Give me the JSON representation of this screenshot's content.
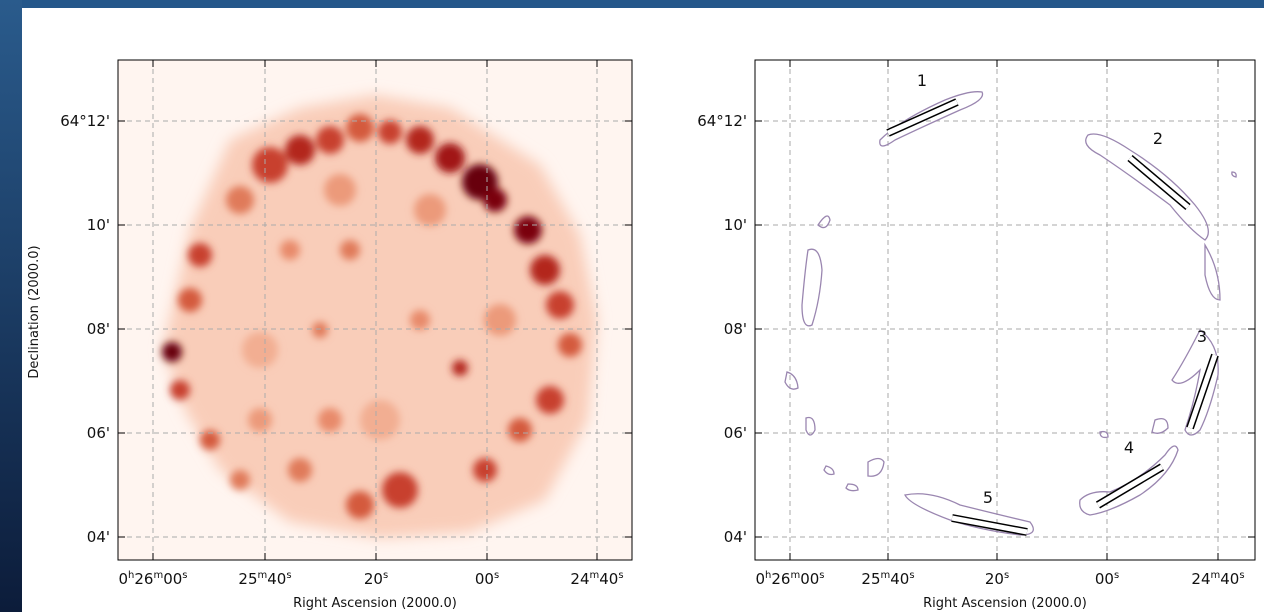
{
  "panels": [
    {
      "x_axis_label": "Right Ascension (2000.0)",
      "y_axis_label": "Declination (2000.0)",
      "x_ticks": [
        [
          "0",
          "h",
          "26",
          "m",
          "00",
          "s"
        ],
        [
          "25",
          "m",
          "40",
          "s"
        ],
        [
          "20",
          "s"
        ],
        [
          "00",
          "s"
        ],
        [
          "24",
          "m",
          "40",
          "s"
        ]
      ],
      "y_ticks": [
        "64°12'",
        "10'",
        "08'",
        "06'",
        "04'"
      ]
    },
    {
      "x_axis_label": "Right Ascension (2000.0)",
      "x_ticks": [
        [
          "0",
          "h",
          "26",
          "m",
          "00",
          "s"
        ],
        [
          "25",
          "m",
          "40",
          "s"
        ],
        [
          "20",
          "s"
        ],
        [
          "00",
          "s"
        ],
        [
          "24",
          "m",
          "40",
          "s"
        ]
      ],
      "y_ticks": [
        "64°12'",
        "10'",
        "08'",
        "06'",
        "04'"
      ],
      "region_labels": [
        "1",
        "2",
        "3",
        "4",
        "5"
      ]
    }
  ]
}
